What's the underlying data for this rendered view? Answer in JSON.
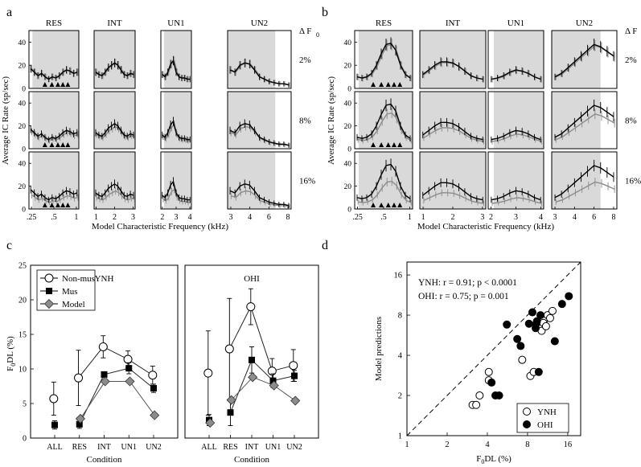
{
  "colors": {
    "black": "#000000",
    "gray": "#8c8c8c",
    "shade": "#d9d9d9",
    "white": "#ffffff"
  },
  "panel_letters": [
    "a",
    "b",
    "c",
    "d"
  ],
  "chart_data": [
    {
      "id": "a",
      "type": "line",
      "ylabel": "Average IC Rate (sp/sec)",
      "xlabel": "Model Characteristic Frequency (kHz)",
      "delta_label": "Δ F",
      "delta_sub": "0",
      "col_titles": [
        "RES",
        "INT",
        "UN1",
        "UN2"
      ],
      "row_labels": [
        "2%",
        "8%",
        "16%"
      ],
      "y_ticks": [
        0,
        20,
        40
      ],
      "ylim": [
        0,
        50
      ],
      "x_tick_labels": [
        [
          ".25",
          ".5",
          "1"
        ],
        [
          "1",
          "2",
          "3"
        ],
        [
          "2",
          "3",
          "4"
        ],
        [
          "3",
          "4",
          "6",
          "8"
        ]
      ],
      "harmonic_markers_panel": "RES",
      "note": "Black = reference F0 response, gray = shifted F0 response; shading = resolved/unresolved harmonic region",
      "curves_black": [
        [
          17,
          14,
          11,
          13,
          10,
          8,
          10,
          9,
          11,
          14,
          16,
          15,
          13,
          14
        ],
        [
          14,
          12,
          11,
          14,
          18,
          20,
          22,
          20,
          16,
          12,
          11,
          13,
          12
        ],
        [
          12,
          10,
          14,
          21,
          24,
          14,
          10,
          9,
          9,
          8,
          8
        ],
        [
          16,
          14,
          20,
          22,
          21,
          16,
          10,
          8,
          6,
          5,
          4,
          4,
          3
        ]
      ],
      "curves_gray_scale": [
        1.0,
        0.88,
        0.72
      ]
    },
    {
      "id": "b",
      "type": "line",
      "ylabel": "Average IC Rate (sp/sec)",
      "xlabel": "Model Characteristic Frequency (kHz)",
      "delta_label": "Δ F",
      "delta_sub": "0",
      "col_titles": [
        "RES",
        "INT",
        "UN1",
        "UN2"
      ],
      "row_labels": [
        "2%",
        "8%",
        "16%"
      ],
      "y_ticks": [
        0,
        20,
        40
      ],
      "ylim": [
        0,
        50
      ],
      "x_tick_labels": [
        [
          ".25",
          ".5",
          "1"
        ],
        [
          "1",
          "2",
          "3"
        ],
        [
          "2",
          "3",
          "4"
        ],
        [
          "3",
          "4",
          "6",
          "8"
        ]
      ],
      "harmonic_markers_panel": "RES",
      "curves_black": [
        [
          10,
          9,
          10,
          13,
          20,
          30,
          38,
          39,
          33,
          20,
          12,
          9
        ],
        [
          12,
          16,
          20,
          23,
          23,
          22,
          19,
          15,
          11,
          9,
          8
        ],
        [
          8,
          9,
          11,
          14,
          16,
          15,
          13,
          10,
          8
        ],
        [
          10,
          13,
          18,
          23,
          28,
          33,
          38,
          36,
          32,
          28
        ]
      ],
      "curves_gray_scale": [
        0.97,
        0.8,
        0.62
      ]
    },
    {
      "id": "c",
      "type": "line",
      "ylabel_main": "F",
      "ylabel_sub": "0",
      "ylabel_rest": "DL  (%)",
      "xlabel": "Condition",
      "subplot_titles": [
        "YNH",
        "OHI"
      ],
      "categories": [
        "ALL",
        "RES",
        "INT",
        "UN1",
        "UN2"
      ],
      "y_ticks": [
        0,
        5,
        10,
        15,
        20,
        25
      ],
      "ylim": [
        0,
        25
      ],
      "legend": [
        "Non-mus",
        "Mus",
        "Model"
      ],
      "series": [
        {
          "name": "Non-mus",
          "YNH": {
            "values": [
              5.7,
              8.7,
              13.2,
              11.4,
              9.1
            ],
            "err": [
              2.4,
              4.0,
              1.6,
              1.2,
              1.3
            ]
          },
          "OHI": {
            "values": [
              9.4,
              12.9,
              19.0,
              9.7,
              10.5
            ],
            "err": [
              6.1,
              7.3,
              2.6,
              1.8,
              2.3
            ]
          }
        },
        {
          "name": "Mus",
          "YNH": {
            "values": [
              1.9,
              2.0,
              9.2,
              10.1,
              7.2
            ],
            "err": [
              0.6,
              0.6,
              0.4,
              0.8,
              0.6
            ]
          },
          "OHI": {
            "values": [
              2.6,
              3.7,
              11.3,
              8.3,
              9.0
            ],
            "err": [
              0.8,
              1.9,
              1.9,
              1.0,
              0.8
            ]
          }
        },
        {
          "name": "Model",
          "YNH": {
            "values": [
              null,
              2.8,
              8.2,
              8.2,
              3.3
            ]
          },
          "OHI": {
            "values": [
              2.2,
              5.5,
              8.8,
              7.6,
              5.4
            ]
          }
        }
      ]
    },
    {
      "id": "d",
      "type": "scatter",
      "xlabel_main": "F",
      "xlabel_sub": "0",
      "xlabel_rest": "DL  (%)",
      "ylabel": "Model predictions",
      "x_scale": "log2",
      "y_scale": "log2",
      "xlim": [
        1,
        20
      ],
      "ylim": [
        1,
        20
      ],
      "x_ticks": [
        1,
        2,
        4,
        8,
        16
      ],
      "y_ticks": [
        1,
        2,
        4,
        8,
        16
      ],
      "identity_line": true,
      "annotations": [
        "YNH: r = 0.91; p < 0.0001",
        "OHI: r = 0.75; p = 0.001"
      ],
      "legend": [
        "YNH",
        "OHI"
      ],
      "series": [
        {
          "name": "YNH",
          "points": [
            [
              3.1,
              1.7
            ],
            [
              3.3,
              1.7
            ],
            [
              3.5,
              2.0
            ],
            [
              4.1,
              2.6
            ],
            [
              4.1,
              3.0
            ],
            [
              7.3,
              3.7
            ],
            [
              8.4,
              2.8
            ],
            [
              8.9,
              3.0
            ],
            [
              10.2,
              6.1
            ],
            [
              10.6,
              7.3
            ],
            [
              11.3,
              8.0
            ],
            [
              11.8,
              7.6
            ],
            [
              12.3,
              8.6
            ],
            [
              10.5,
              7.0
            ],
            [
              11.0,
              6.6
            ]
          ]
        },
        {
          "name": "OHI",
          "points": [
            [
              4.3,
              2.5
            ],
            [
              4.6,
              2.0
            ],
            [
              4.9,
              2.0
            ],
            [
              5.6,
              6.8
            ],
            [
              6.7,
              5.3
            ],
            [
              7.1,
              4.7
            ],
            [
              8.2,
              6.9
            ],
            [
              8.7,
              8.4
            ],
            [
              9.3,
              6.9
            ],
            [
              9.4,
              7.2
            ],
            [
              9.7,
              3.0
            ],
            [
              10.0,
              8.0
            ],
            [
              12.8,
              5.1
            ],
            [
              14.5,
              9.7
            ],
            [
              16.3,
              11.1
            ],
            [
              9.2,
              6.4
            ]
          ]
        }
      ]
    }
  ]
}
